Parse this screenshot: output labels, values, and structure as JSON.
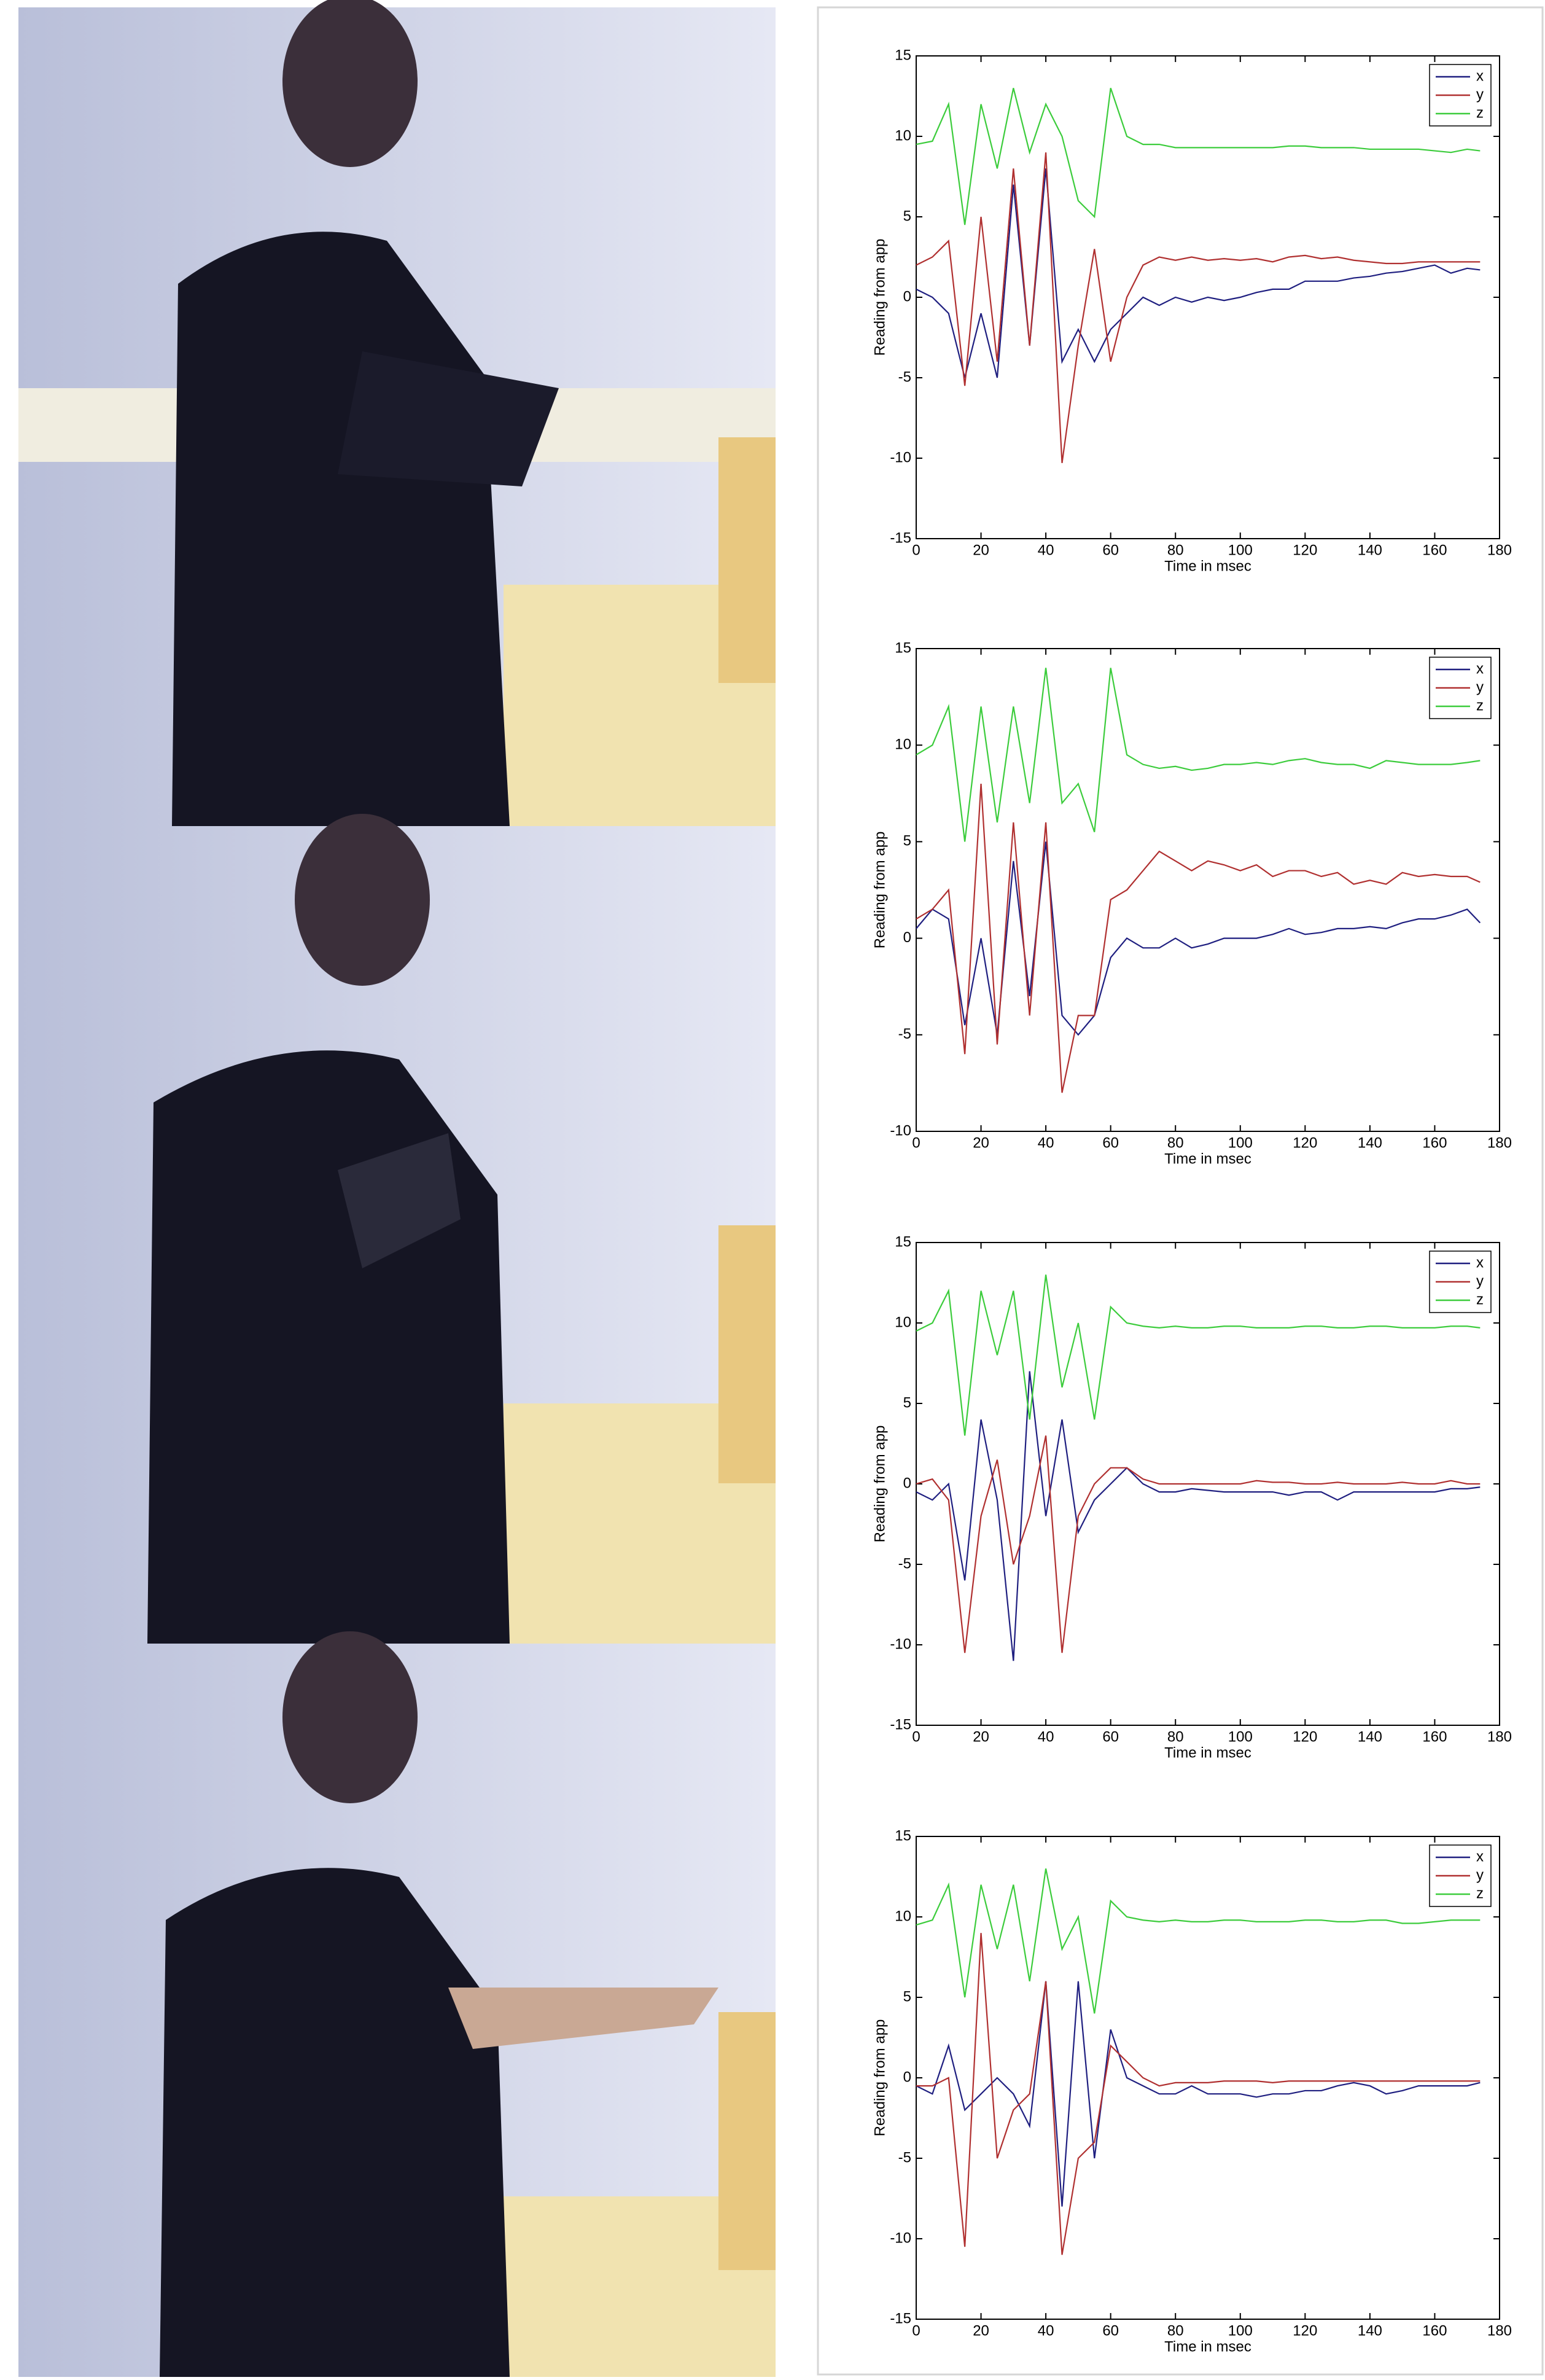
{
  "chart_data": [
    {
      "type": "line",
      "x": [
        0,
        5,
        10,
        15,
        20,
        25,
        30,
        35,
        40,
        45,
        50,
        55,
        60,
        65,
        70,
        75,
        80,
        85,
        90,
        95,
        100,
        105,
        110,
        115,
        120,
        125,
        130,
        135,
        140,
        145,
        150,
        155,
        160,
        165,
        170,
        174
      ],
      "xlabel": "Time in msec",
      "ylabel": "Reading from app",
      "xlim": [
        0,
        180
      ],
      "ylim": [
        -15,
        15
      ],
      "xticks": [
        0,
        20,
        40,
        60,
        80,
        100,
        120,
        140,
        160,
        180
      ],
      "yticks": [
        -15,
        -10,
        -5,
        0,
        5,
        10,
        15
      ],
      "legend": "upper right",
      "series": [
        {
          "name": "x",
          "color": "#1f1f80",
          "values": [
            0.5,
            0,
            -1,
            -5,
            -1,
            -5,
            7,
            -3,
            8,
            -4,
            -2,
            -4,
            -2,
            -1,
            0,
            -0.5,
            0,
            -0.3,
            0,
            -0.2,
            0,
            0.3,
            0.5,
            0.5,
            1,
            1,
            1,
            1.2,
            1.3,
            1.5,
            1.6,
            1.8,
            2,
            1.5,
            1.8,
            1.7
          ]
        },
        {
          "name": "y",
          "color": "#b03030",
          "values": [
            2,
            2.5,
            3.5,
            -5.5,
            5,
            -4,
            8,
            -3,
            9,
            -10.3,
            -3,
            3,
            -4,
            0,
            2,
            2.5,
            2.3,
            2.5,
            2.3,
            2.4,
            2.3,
            2.4,
            2.2,
            2.5,
            2.6,
            2.4,
            2.5,
            2.3,
            2.2,
            2.1,
            2.1,
            2.2,
            2.2,
            2.2,
            2.2,
            2.2
          ]
        },
        {
          "name": "z",
          "color": "#3ccc3c",
          "values": [
            9.5,
            9.7,
            12,
            4.5,
            12,
            8,
            13,
            9,
            12,
            10,
            6,
            5,
            13,
            10,
            9.5,
            9.5,
            9.3,
            9.3,
            9.3,
            9.3,
            9.3,
            9.3,
            9.3,
            9.4,
            9.4,
            9.3,
            9.3,
            9.3,
            9.2,
            9.2,
            9.2,
            9.2,
            9.1,
            9,
            9.2,
            9.1
          ]
        }
      ]
    },
    {
      "type": "line",
      "x": [
        0,
        5,
        10,
        15,
        20,
        25,
        30,
        35,
        40,
        45,
        50,
        55,
        60,
        65,
        70,
        75,
        80,
        85,
        90,
        95,
        100,
        105,
        110,
        115,
        120,
        125,
        130,
        135,
        140,
        145,
        150,
        155,
        160,
        165,
        170,
        174
      ],
      "xlabel": "Time in msec",
      "ylabel": "Reading from app",
      "xlim": [
        0,
        180
      ],
      "ylim": [
        -10,
        15
      ],
      "xticks": [
        0,
        20,
        40,
        60,
        80,
        100,
        120,
        140,
        160,
        180
      ],
      "yticks": [
        -10,
        -5,
        0,
        5,
        10,
        15
      ],
      "legend": "upper right",
      "series": [
        {
          "name": "x",
          "color": "#1f1f80",
          "values": [
            0.5,
            1.5,
            1,
            -4.5,
            0,
            -5,
            4,
            -3,
            5,
            -4,
            -5,
            -4,
            -1,
            0,
            -0.5,
            -0.5,
            0,
            -0.5,
            -0.3,
            0,
            0,
            0,
            0.2,
            0.5,
            0.2,
            0.3,
            0.5,
            0.5,
            0.6,
            0.5,
            0.8,
            1,
            1,
            1.2,
            1.5,
            0.8
          ]
        },
        {
          "name": "y",
          "color": "#b03030",
          "values": [
            1,
            1.5,
            2.5,
            -6,
            8,
            -5.5,
            6,
            -4,
            6,
            -8,
            -4,
            -4,
            2,
            2.5,
            3.5,
            4.5,
            4,
            3.5,
            4,
            3.8,
            3.5,
            3.8,
            3.2,
            3.5,
            3.5,
            3.2,
            3.4,
            2.8,
            3,
            2.8,
            3.4,
            3.2,
            3.3,
            3.2,
            3.2,
            2.9
          ]
        },
        {
          "name": "z",
          "color": "#3ccc3c",
          "values": [
            9.5,
            10,
            12,
            5,
            12,
            6,
            12,
            7,
            14,
            7,
            8,
            5.5,
            14,
            9.5,
            9,
            8.8,
            8.9,
            8.7,
            8.8,
            9,
            9,
            9.1,
            9,
            9.2,
            9.3,
            9.1,
            9,
            9,
            8.8,
            9.2,
            9.1,
            9,
            9,
            9,
            9.1,
            9.2
          ]
        }
      ]
    },
    {
      "type": "line",
      "x": [
        0,
        5,
        10,
        15,
        20,
        25,
        30,
        35,
        40,
        45,
        50,
        55,
        60,
        65,
        70,
        75,
        80,
        85,
        90,
        95,
        100,
        105,
        110,
        115,
        120,
        125,
        130,
        135,
        140,
        145,
        150,
        155,
        160,
        165,
        170,
        174
      ],
      "xlabel": "Time in msec",
      "ylabel": "Reading from app",
      "xlim": [
        0,
        180
      ],
      "ylim": [
        -15,
        15
      ],
      "xticks": [
        0,
        20,
        40,
        60,
        80,
        100,
        120,
        140,
        160,
        180
      ],
      "yticks": [
        -15,
        -10,
        -5,
        0,
        5,
        10,
        15
      ],
      "legend": "upper right",
      "series": [
        {
          "name": "x",
          "color": "#1f1f80",
          "values": [
            -0.5,
            -1,
            0,
            -6,
            4,
            -1,
            -11,
            7,
            -2,
            4,
            -3,
            -1,
            0,
            1,
            0,
            -0.5,
            -0.5,
            -0.3,
            -0.4,
            -0.5,
            -0.5,
            -0.5,
            -0.5,
            -0.7,
            -0.5,
            -0.5,
            -1,
            -0.5,
            -0.5,
            -0.5,
            -0.5,
            -0.5,
            -0.5,
            -0.3,
            -0.3,
            -0.2
          ]
        },
        {
          "name": "y",
          "color": "#b03030",
          "values": [
            0,
            0.3,
            -1,
            -10.5,
            -2,
            1.5,
            -5,
            -2,
            3,
            -10.5,
            -2,
            0,
            1,
            1,
            0.3,
            0,
            0,
            0,
            0,
            0,
            0,
            0.2,
            0.1,
            0.1,
            0,
            0,
            0.1,
            0,
            0,
            0,
            0.1,
            0,
            0,
            0.2,
            0,
            0
          ]
        },
        {
          "name": "z",
          "color": "#3ccc3c",
          "values": [
            9.5,
            10,
            12,
            3,
            12,
            8,
            12,
            4,
            13,
            6,
            10,
            4,
            11,
            10,
            9.8,
            9.7,
            9.8,
            9.7,
            9.7,
            9.8,
            9.8,
            9.7,
            9.7,
            9.7,
            9.8,
            9.8,
            9.7,
            9.7,
            9.8,
            9.8,
            9.7,
            9.7,
            9.7,
            9.8,
            9.8,
            9.7
          ]
        }
      ]
    },
    {
      "type": "line",
      "x": [
        0,
        5,
        10,
        15,
        20,
        25,
        30,
        35,
        40,
        45,
        50,
        55,
        60,
        65,
        70,
        75,
        80,
        85,
        90,
        95,
        100,
        105,
        110,
        115,
        120,
        125,
        130,
        135,
        140,
        145,
        150,
        155,
        160,
        165,
        170,
        174
      ],
      "xlabel": "Time in msec",
      "ylabel": "Reading from app",
      "xlim": [
        0,
        180
      ],
      "ylim": [
        -15,
        15
      ],
      "xticks": [
        0,
        20,
        40,
        60,
        80,
        100,
        120,
        140,
        160,
        180
      ],
      "yticks": [
        -15,
        -10,
        -5,
        0,
        5,
        10,
        15
      ],
      "legend": "upper right",
      "series": [
        {
          "name": "x",
          "color": "#1f1f80",
          "values": [
            -0.5,
            -1,
            2,
            -2,
            -1,
            0,
            -1,
            -3,
            6,
            -8,
            6,
            -5,
            3,
            0,
            -0.5,
            -1,
            -1,
            -0.5,
            -1,
            -1,
            -1,
            -1.2,
            -1,
            -1,
            -0.8,
            -0.8,
            -0.5,
            -0.3,
            -0.5,
            -1,
            -0.8,
            -0.5,
            -0.5,
            -0.5,
            -0.5,
            -0.3
          ]
        },
        {
          "name": "y",
          "color": "#b03030",
          "values": [
            -0.5,
            -0.5,
            0,
            -10.5,
            9,
            -5,
            -2,
            -1,
            6,
            -11,
            -5,
            -4,
            2,
            1,
            0,
            -0.5,
            -0.3,
            -0.3,
            -0.3,
            -0.2,
            -0.2,
            -0.2,
            -0.3,
            -0.2,
            -0.2,
            -0.2,
            -0.2,
            -0.2,
            -0.2,
            -0.2,
            -0.2,
            -0.2,
            -0.2,
            -0.2,
            -0.2,
            -0.2
          ]
        },
        {
          "name": "z",
          "color": "#3ccc3c",
          "values": [
            9.5,
            9.8,
            12,
            5,
            12,
            8,
            12,
            6,
            13,
            8,
            10,
            4,
            11,
            10,
            9.8,
            9.7,
            9.8,
            9.7,
            9.7,
            9.8,
            9.8,
            9.7,
            9.7,
            9.7,
            9.8,
            9.8,
            9.7,
            9.7,
            9.8,
            9.8,
            9.6,
            9.6,
            9.7,
            9.8,
            9.8,
            9.8
          ]
        }
      ]
    }
  ]
}
